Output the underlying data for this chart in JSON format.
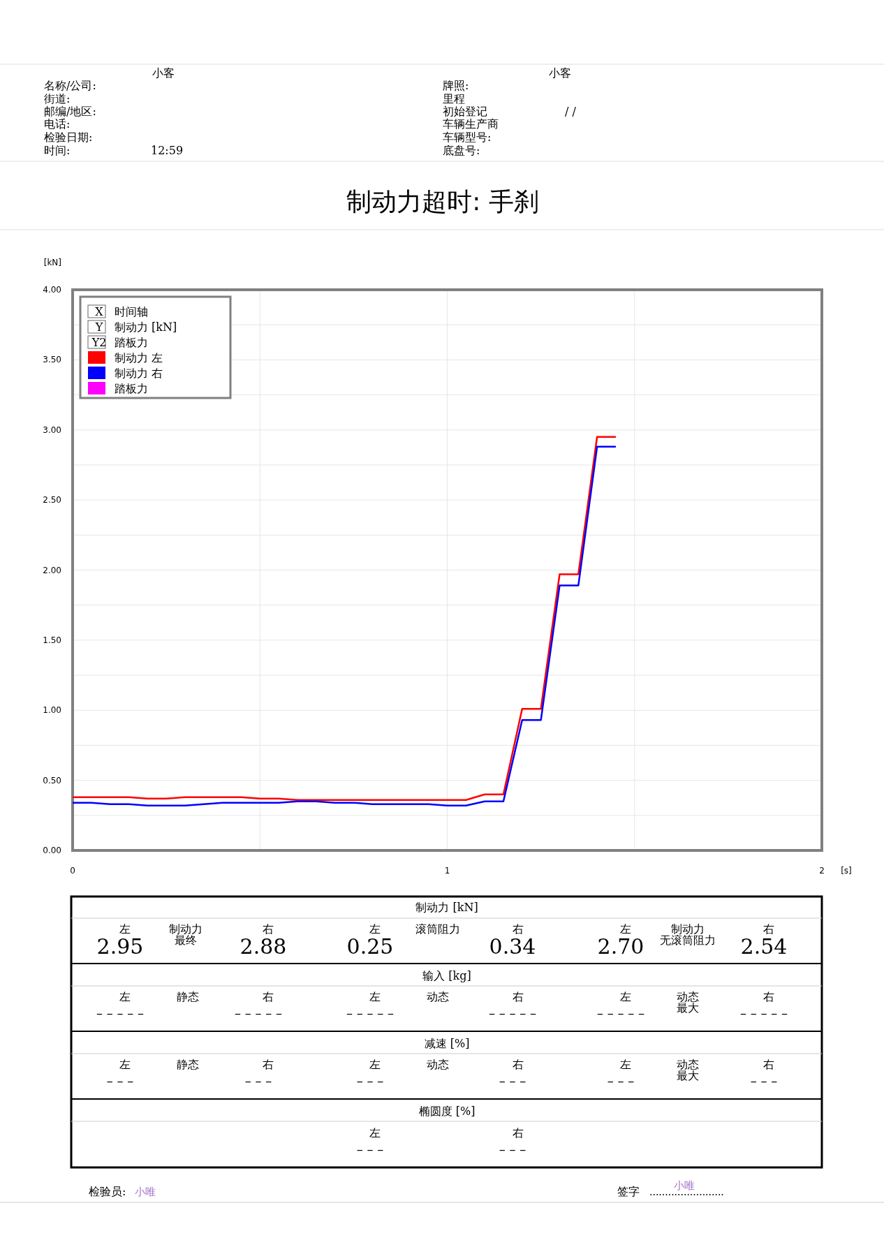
{
  "chart_data": {
    "type": "line",
    "title": "制动力超时: 手刹",
    "xlabel": "[s]",
    "ylabel": "[kN]",
    "x": [
      0,
      0.05,
      0.1,
      0.15,
      0.2,
      0.25,
      0.3,
      0.35,
      0.4,
      0.45,
      0.5,
      0.55,
      0.6,
      0.65,
      0.7,
      0.75,
      0.8,
      0.85,
      0.9,
      0.95,
      1.0,
      1.05,
      1.1,
      1.15,
      1.2,
      1.25,
      1.3,
      1.35,
      1.4,
      1.45
    ],
    "series": [
      {
        "name": "制动力 左",
        "color": "#ff0000",
        "values": [
          0.38,
          0.38,
          0.38,
          0.38,
          0.37,
          0.37,
          0.38,
          0.38,
          0.38,
          0.38,
          0.37,
          0.37,
          0.36,
          0.36,
          0.36,
          0.36,
          0.36,
          0.36,
          0.36,
          0.36,
          0.36,
          0.36,
          0.4,
          0.4,
          1.01,
          1.01,
          1.97,
          1.97,
          2.95,
          2.95
        ]
      },
      {
        "name": "制动力 右",
        "color": "#0000ff",
        "values": [
          0.34,
          0.34,
          0.33,
          0.33,
          0.32,
          0.32,
          0.32,
          0.33,
          0.34,
          0.34,
          0.34,
          0.34,
          0.35,
          0.35,
          0.34,
          0.34,
          0.33,
          0.33,
          0.33,
          0.33,
          0.32,
          0.32,
          0.35,
          0.35,
          0.93,
          0.93,
          1.89,
          1.89,
          2.88,
          2.88
        ]
      },
      {
        "name": "踏板力",
        "color": "#ff00ff",
        "values": [
          null,
          null,
          null,
          null,
          null,
          null,
          null,
          null,
          null,
          null,
          null,
          null,
          null,
          null,
          null,
          null,
          null,
          null,
          null,
          null,
          null,
          null,
          null,
          null,
          null,
          null,
          null,
          null,
          null,
          null
        ]
      }
    ],
    "xlim": [
      0,
      2
    ],
    "xticks": [
      0,
      {
        "value": 0.5,
        "label": null
      },
      1,
      {
        "value": 1.5,
        "label": null
      },
      2
    ],
    "ylim": [
      0,
      4
    ],
    "yticks": [
      {
        "value": 0,
        "label": "0.00"
      },
      {
        "value": 0.25,
        "label": null
      },
      {
        "value": 0.5,
        "label": "0.50"
      },
      {
        "value": 0.75,
        "label": null
      },
      {
        "value": 1,
        "label": "1.00"
      },
      {
        "value": 1.25,
        "label": null
      },
      {
        "value": 1.5,
        "label": "1.50"
      },
      {
        "value": 1.75,
        "label": null
      },
      {
        "value": 2,
        "label": "2.00"
      },
      {
        "value": 2.25,
        "label": null
      },
      {
        "value": 2.5,
        "label": "2.50"
      },
      {
        "value": 2.75,
        "label": null
      },
      {
        "value": 3,
        "label": "3.00"
      },
      {
        "value": 3.25,
        "label": null
      },
      {
        "value": 3.5,
        "label": "3.50"
      },
      {
        "value": 3.75,
        "label": null
      },
      {
        "value": 4,
        "label": "4.00"
      }
    ],
    "grid": true,
    "legend": "top left",
    "marker": "none",
    "line_style": "solid",
    "annotations": [
      "小客",
      "小客",
      "名称/公司:",
      "街道:",
      "邮编/地区:",
      "电话:",
      "检验日期:",
      "时间:",
      "12:59",
      "牌照:",
      "里程",
      "初始登记",
      "/ /",
      "车辆生产商",
      "车辆型号:",
      "底盘号:",
      "制动力 [kN]",
      "输入 [kg]",
      "减速 [%]",
      "椭圆度 [%]",
      "左",
      "制动力",
      "最终",
      "右",
      "2.95",
      "2.88",
      "左",
      "滚筒阻力",
      "右",
      "0.25",
      "0.34",
      "左",
      "制动力",
      "无滚筒阻力",
      "右",
      "2.70",
      "2.54",
      "左",
      "静态",
      "右",
      "左",
      "动态",
      "右",
      "左",
      "动态",
      "最大",
      "右",
      "– – – – –",
      "– – – – –",
      "– – – – –",
      "– – – – –",
      "– – – – –",
      "– – – – –",
      "左",
      "静态",
      "右",
      "左",
      "动态",
      "右",
      "左",
      "动态",
      "最大",
      "右",
      "– – –",
      "– – –",
      "– – –",
      "– – –",
      "– – –",
      "– – –",
      "左",
      "右",
      "– – –",
      "– – –",
      "检验员:",
      "小唯",
      "签字",
      "........................",
      "小唯",
      "X",
      "时间轴",
      "Y",
      "制动力 [kN]",
      "Y2",
      "踏板力"
    ]
  }
}
